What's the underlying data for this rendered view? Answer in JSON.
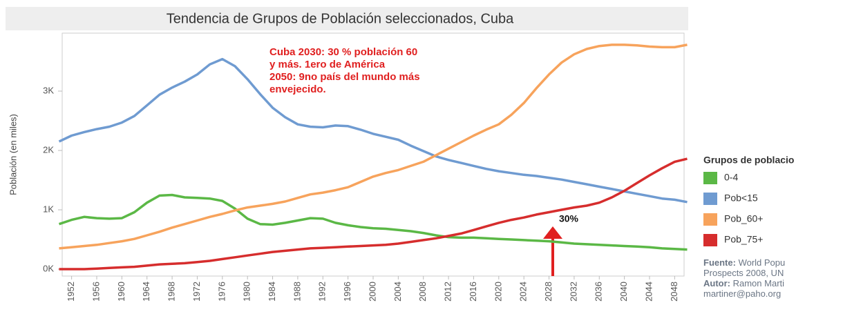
{
  "chart_data": {
    "type": "line",
    "title": "Tendencia de Grupos de Población seleccionados, Cuba",
    "ylabel": "Población (en miles)",
    "annotation": [
      "Cuba  2030: 30 % población 60",
      "y más. 1ero de América",
      "2050: 9no país del mundo más",
      "envejecido."
    ],
    "arrow_label": "30%",
    "legend_title": "Grupos de poblacio",
    "source": [
      [
        "Fuente:",
        " World Popu"
      ],
      [
        "",
        "Prospects  2008, UN"
      ],
      [
        "Autor:",
        " Ramon Marti"
      ],
      [
        "",
        "martiner@paho.org"
      ]
    ],
    "x": [
      1950,
      1952,
      1954,
      1956,
      1958,
      1960,
      1962,
      1964,
      1966,
      1968,
      1970,
      1972,
      1974,
      1976,
      1978,
      1980,
      1982,
      1984,
      1986,
      1988,
      1990,
      1992,
      1994,
      1996,
      1998,
      2000,
      2002,
      2004,
      2006,
      2008,
      2010,
      2012,
      2014,
      2016,
      2018,
      2020,
      2022,
      2024,
      2026,
      2028,
      2030,
      2032,
      2034,
      2036,
      2038,
      2040,
      2042,
      2044,
      2046,
      2048,
      2050
    ],
    "series": [
      {
        "name": "0-4",
        "color": "#5bb846",
        "values": [
          760,
          830,
          880,
          860,
          850,
          860,
          960,
          1120,
          1240,
          1250,
          1210,
          1200,
          1190,
          1150,
          1020,
          850,
          760,
          750,
          780,
          820,
          860,
          850,
          780,
          740,
          710,
          690,
          680,
          660,
          640,
          610,
          570,
          540,
          530,
          530,
          520,
          510,
          500,
          490,
          480,
          470,
          450,
          430,
          420,
          410,
          400,
          390,
          380,
          370,
          350,
          340,
          330
        ]
      },
      {
        "name": "Pob<15",
        "color": "#6f9bd1",
        "values": [
          2150,
          2250,
          2310,
          2360,
          2400,
          2470,
          2580,
          2760,
          2940,
          3060,
          3160,
          3280,
          3450,
          3540,
          3420,
          3200,
          2950,
          2720,
          2560,
          2440,
          2400,
          2390,
          2420,
          2410,
          2350,
          2280,
          2230,
          2180,
          2080,
          1990,
          1900,
          1840,
          1790,
          1740,
          1690,
          1650,
          1620,
          1590,
          1570,
          1540,
          1510,
          1470,
          1430,
          1390,
          1350,
          1310,
          1270,
          1230,
          1190,
          1170,
          1130
        ]
      },
      {
        "name": "Pob_60+",
        "color": "#f7a35c",
        "values": [
          350,
          370,
          390,
          410,
          440,
          470,
          510,
          570,
          630,
          700,
          760,
          820,
          880,
          930,
          990,
          1040,
          1070,
          1100,
          1140,
          1200,
          1260,
          1290,
          1330,
          1380,
          1470,
          1560,
          1620,
          1670,
          1740,
          1810,
          1920,
          2030,
          2140,
          2250,
          2350,
          2440,
          2600,
          2800,
          3050,
          3280,
          3480,
          3620,
          3710,
          3760,
          3780,
          3780,
          3770,
          3750,
          3740,
          3740,
          3780
        ]
      },
      {
        "name": "Pob_75+",
        "color": "#d62d2d",
        "values": [
          0,
          0,
          0,
          10,
          20,
          30,
          40,
          60,
          80,
          90,
          100,
          120,
          140,
          170,
          200,
          230,
          260,
          290,
          310,
          330,
          350,
          360,
          370,
          380,
          390,
          400,
          410,
          430,
          460,
          490,
          520,
          560,
          600,
          660,
          720,
          780,
          830,
          870,
          920,
          960,
          1000,
          1040,
          1070,
          1120,
          1210,
          1320,
          1450,
          1580,
          1700,
          1810,
          1860
        ]
      }
    ],
    "xlim": [
      1950.5,
      2049.5
    ],
    "xticks": [
      1952,
      1956,
      1960,
      1964,
      1968,
      1972,
      1976,
      1980,
      1984,
      1988,
      1992,
      1996,
      2000,
      2004,
      2008,
      2012,
      2016,
      2020,
      2024,
      2028,
      2032,
      2036,
      2040,
      2044,
      2048
    ],
    "ylim": [
      -116,
      3977
    ],
    "yticks": [
      {
        "value": 0,
        "label": "0K"
      },
      {
        "value": 1000,
        "label": "1K"
      },
      {
        "value": 2000,
        "label": "2K"
      },
      {
        "value": 3000,
        "label": "3K"
      }
    ]
  }
}
